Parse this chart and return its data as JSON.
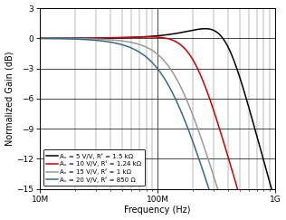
{
  "xlabel": "Frequency (Hz)",
  "ylabel": "Normalized Gain (dB)",
  "xlim": [
    10000000.0,
    1000000000.0
  ],
  "ylim": [
    -15,
    3
  ],
  "yticks": [
    -15,
    -12,
    -9,
    -6,
    -3,
    0,
    3
  ],
  "series": [
    {
      "label": "Aᵥ = 5 V/V, Rᶠ = 1.5 kΩ",
      "color": "#000000",
      "f3db": 380000000.0,
      "Q": 0.95,
      "dc_off": 0.0
    },
    {
      "label": "Aᵥ = 10 V/V, Rᶠ = 1.24 kΩ",
      "color": "#cc0000",
      "f3db": 200000000.0,
      "Q": 0.78,
      "dc_off": 0.0
    },
    {
      "label": "Aᵥ = 15 V/V, Rᶠ = 1 kΩ",
      "color": "#999999",
      "f3db": 140000000.0,
      "Q": 0.65,
      "dc_off": 0.0
    },
    {
      "label": "Aᵥ = 20 V/V, Rᶠ = 850 Ω",
      "color": "#336b87",
      "f3db": 120000000.0,
      "Q": 0.6,
      "dc_off": 0.0
    }
  ],
  "background_color": "#ffffff",
  "linewidth": 1.1
}
